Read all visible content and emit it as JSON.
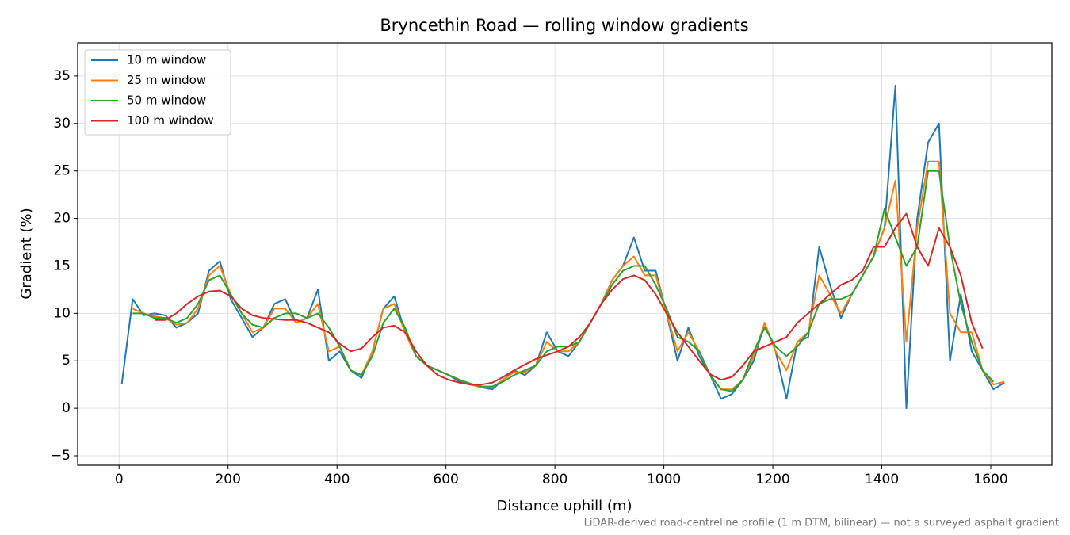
{
  "chart_data": {
    "type": "line",
    "title": "Bryncethin Road — rolling window gradients",
    "xlabel": "Distance uphill (m)",
    "ylabel": "Gradient (%)",
    "note": "LiDAR-derived road-centreline profile (1 m DTM, bilinear) — not a surveyed asphalt gradient",
    "xlim": [
      -76,
      1712
    ],
    "ylim": [
      -6.0,
      38.5
    ],
    "xticks": [
      0,
      200,
      400,
      600,
      800,
      1000,
      1200,
      1400,
      1600
    ],
    "yticks": [
      {
        "value": -5,
        "label": "−5"
      },
      0,
      5,
      10,
      15,
      20,
      25,
      30,
      35
    ],
    "grid": true,
    "legend": "upper left",
    "x": [
      5,
      25,
      45,
      65,
      85,
      105,
      125,
      145,
      165,
      185,
      205,
      225,
      245,
      265,
      285,
      305,
      325,
      345,
      365,
      385,
      405,
      425,
      445,
      465,
      485,
      505,
      525,
      545,
      565,
      585,
      605,
      625,
      645,
      665,
      685,
      705,
      725,
      745,
      765,
      785,
      805,
      825,
      845,
      865,
      885,
      905,
      925,
      945,
      965,
      985,
      1005,
      1025,
      1045,
      1065,
      1085,
      1105,
      1125,
      1145,
      1165,
      1185,
      1205,
      1225,
      1245,
      1265,
      1285,
      1305,
      1325,
      1345,
      1365,
      1385,
      1405,
      1425,
      1445,
      1465,
      1485,
      1505,
      1525,
      1545,
      1565,
      1585,
      1605,
      1625
    ],
    "series": [
      {
        "name": "10 m window",
        "color": "#1f77b4",
        "values": [
          2.6,
          11.5,
          9.8,
          10,
          9.8,
          8.5,
          9,
          10,
          14.5,
          15.5,
          11.5,
          9.5,
          7.5,
          8.5,
          11,
          11.5,
          9,
          9.5,
          12.5,
          5,
          6,
          4,
          3.2,
          6,
          10.5,
          11.8,
          8,
          5.5,
          4.5,
          4,
          3.5,
          2.8,
          2.5,
          2.2,
          2,
          3,
          4,
          3.5,
          4.5,
          8,
          6,
          5.5,
          7,
          9,
          11,
          13.5,
          15,
          18,
          14.5,
          14.5,
          10,
          5,
          8.5,
          5.5,
          3.5,
          1,
          1.5,
          3,
          5,
          9,
          6,
          1,
          7,
          7.5,
          17,
          13,
          9.5,
          12,
          14,
          16,
          19,
          34,
          0,
          20,
          28,
          30,
          5,
          12,
          6,
          4,
          2,
          2.7
        ]
      },
      {
        "name": "25 m window",
        "color": "#ff7f0e",
        "values": [
          null,
          10.5,
          10,
          9.7,
          9.5,
          8.8,
          9,
          10.5,
          14,
          15,
          12,
          10,
          8,
          8.5,
          10.5,
          10.5,
          9,
          9.5,
          11,
          6,
          6.5,
          4,
          3.5,
          6,
          10.5,
          11,
          8,
          5.5,
          4.5,
          4,
          3.5,
          3,
          2.5,
          2.2,
          2.2,
          3,
          3.8,
          3.8,
          4.5,
          7,
          6,
          6,
          7,
          9,
          11,
          13.5,
          15,
          16,
          14,
          14,
          10,
          6,
          8,
          6,
          3.5,
          2,
          2,
          3,
          5.5,
          9,
          6,
          4,
          7,
          8,
          14,
          12,
          10,
          12,
          14,
          16,
          19,
          24,
          7,
          19,
          26,
          26,
          10,
          8,
          8,
          4,
          2.5,
          2.8
        ]
      },
      {
        "name": "50 m window",
        "color": "#2ca02c",
        "values": [
          null,
          10,
          10,
          9.5,
          9.5,
          9,
          9.5,
          11,
          13.5,
          14,
          12,
          10,
          8.8,
          8.5,
          9.5,
          10,
          10,
          9.5,
          10,
          8.5,
          6.5,
          4,
          3.5,
          5.5,
          9,
          10.5,
          8.5,
          5.5,
          4.5,
          4,
          3.5,
          3,
          2.6,
          2.3,
          2.3,
          2.8,
          3.5,
          4,
          4.5,
          6,
          6.5,
          6.5,
          7,
          9,
          11,
          13,
          14.5,
          15,
          15,
          13,
          10.5,
          7.5,
          7,
          6,
          3.5,
          2,
          1.8,
          3,
          6,
          8.5,
          6.5,
          5.5,
          6.5,
          8,
          11,
          11.5,
          11.5,
          12,
          14,
          16,
          21,
          18,
          15,
          17,
          25,
          25,
          17,
          11,
          7,
          4,
          2.8,
          null
        ]
      },
      {
        "name": "100 m window",
        "color": "#d62728",
        "values": [
          null,
          null,
          null,
          9.3,
          9.3,
          10,
          11,
          11.8,
          12.3,
          12.4,
          11.8,
          10.5,
          9.8,
          9.5,
          9.4,
          9.3,
          9.3,
          9,
          8.5,
          8,
          6.8,
          6,
          6.3,
          7.5,
          8.5,
          8.7,
          8,
          6,
          4.5,
          3.5,
          3,
          2.7,
          2.5,
          2.5,
          2.7,
          3.3,
          4,
          4.6,
          5.2,
          5.6,
          6,
          6.5,
          7.5,
          9,
          11,
          12.5,
          13.6,
          14,
          13.5,
          12,
          10,
          8,
          6.5,
          5,
          3.6,
          3,
          3.3,
          4.5,
          6,
          6.5,
          7,
          7.5,
          9,
          10,
          11,
          12,
          13,
          13.5,
          14.5,
          17,
          17,
          19,
          20.5,
          17,
          15,
          19,
          17,
          14,
          9,
          6.3,
          null,
          null
        ]
      }
    ]
  }
}
